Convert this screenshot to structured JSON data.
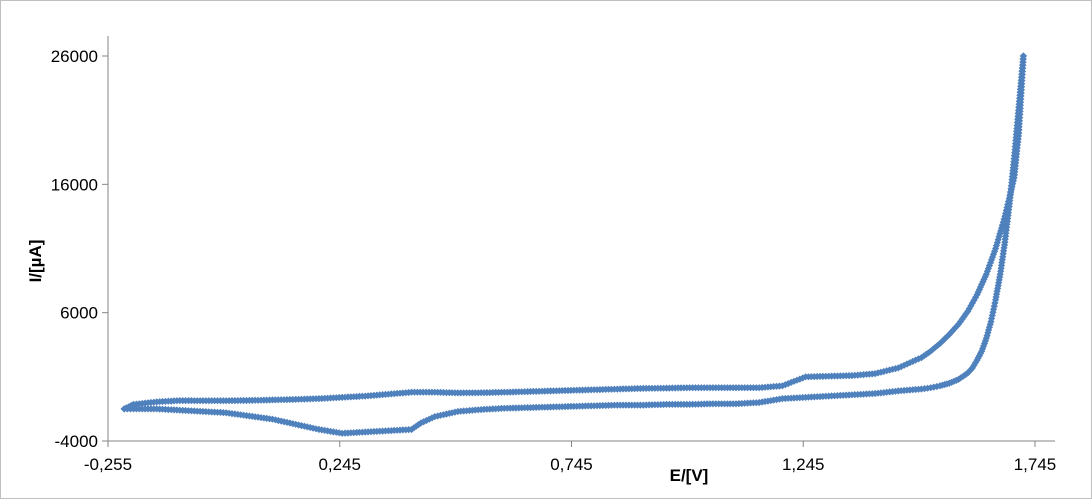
{
  "chart_data": {
    "type": "scatter",
    "title": "",
    "xlabel": "E/[V]",
    "ylabel": "I/[µA]",
    "xlim": [
      -0.255,
      1.745
    ],
    "ylim": [
      -4000,
      26000
    ],
    "x_ticks": [
      "-0,255",
      "0,245",
      "0,745",
      "1,245",
      "1,745"
    ],
    "y_ticks": [
      "-4000",
      "6000",
      "16000",
      "26000"
    ],
    "x_tick_values": [
      -0.255,
      0.245,
      0.745,
      1.245,
      1.745
    ],
    "y_tick_values": [
      -4000,
      6000,
      16000,
      26000
    ],
    "grid": false,
    "legend": "none",
    "marker": "diamond",
    "series_color": "#4f81bd",
    "series": [
      {
        "name": "",
        "segment": "forward",
        "x": [
          -0.22,
          -0.2,
          -0.15,
          -0.1,
          -0.05,
          0.0,
          0.05,
          0.1,
          0.15,
          0.2,
          0.25,
          0.3,
          0.35,
          0.4,
          0.45,
          0.5,
          0.55,
          0.6,
          0.65,
          0.7,
          0.75,
          0.8,
          0.85,
          0.9,
          0.95,
          1.0,
          1.05,
          1.1,
          1.15,
          1.2,
          1.25,
          1.3,
          1.35,
          1.4,
          1.45,
          1.5,
          1.52,
          1.54,
          1.56,
          1.58,
          1.6,
          1.62,
          1.64,
          1.66,
          1.68,
          1.7,
          1.71,
          1.72
        ],
        "y": [
          -1500,
          -1150,
          -950,
          -850,
          -860,
          -860,
          -840,
          -800,
          -760,
          -700,
          -600,
          -500,
          -350,
          -200,
          -200,
          -250,
          -240,
          -200,
          -150,
          -100,
          -50,
          0,
          50,
          100,
          120,
          150,
          150,
          150,
          150,
          300,
          1000,
          1050,
          1100,
          1250,
          1700,
          2500,
          3000,
          3600,
          4300,
          5100,
          6100,
          7400,
          9000,
          11000,
          13500,
          16500,
          20000,
          26000
        ]
      },
      {
        "name": "",
        "segment": "reverse",
        "x": [
          1.72,
          1.71,
          1.7,
          1.69,
          1.68,
          1.67,
          1.66,
          1.65,
          1.64,
          1.63,
          1.62,
          1.61,
          1.6,
          1.58,
          1.56,
          1.54,
          1.52,
          1.5,
          1.45,
          1.4,
          1.35,
          1.3,
          1.25,
          1.2,
          1.15,
          1.1,
          1.05,
          1.0,
          0.95,
          0.9,
          0.85,
          0.8,
          0.75,
          0.7,
          0.65,
          0.6,
          0.55,
          0.5,
          0.45,
          0.42,
          0.4,
          0.35,
          0.3,
          0.25,
          0.2,
          0.15,
          0.1,
          0.05,
          0.0,
          -0.05,
          -0.1,
          -0.15,
          -0.2,
          -0.22
        ],
        "y": [
          26000,
          22000,
          18000,
          14500,
          11500,
          9000,
          7000,
          5300,
          4000,
          3000,
          2300,
          1700,
          1300,
          800,
          500,
          300,
          150,
          50,
          -100,
          -300,
          -400,
          -500,
          -600,
          -700,
          -1000,
          -1100,
          -1100,
          -1150,
          -1150,
          -1200,
          -1200,
          -1250,
          -1300,
          -1350,
          -1400,
          -1450,
          -1550,
          -1700,
          -2100,
          -2600,
          -3100,
          -3200,
          -3300,
          -3400,
          -3100,
          -2700,
          -2300,
          -2050,
          -1800,
          -1700,
          -1600,
          -1500,
          -1500,
          -1500
        ]
      }
    ]
  }
}
